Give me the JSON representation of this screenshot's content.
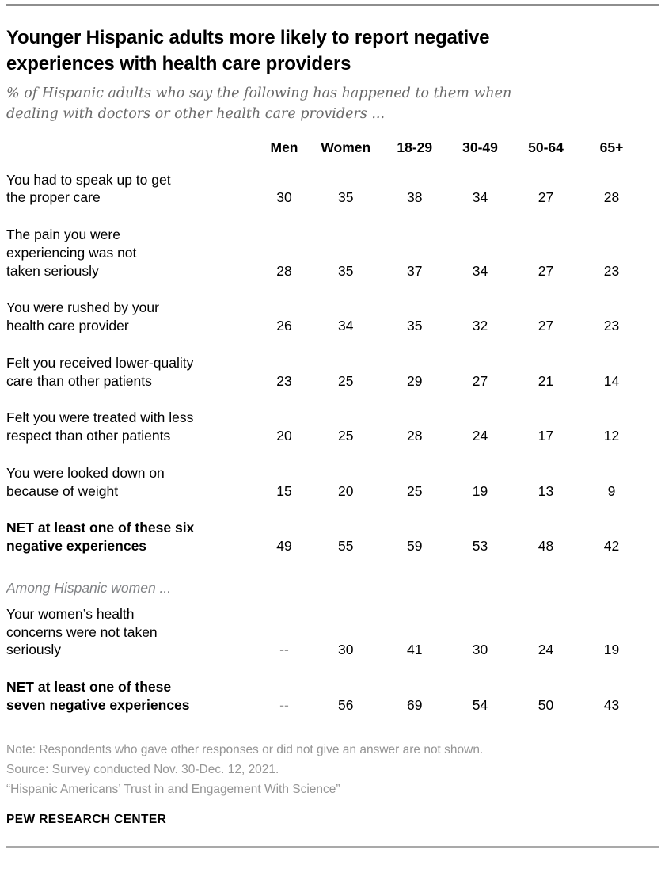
{
  "chart_data": {
    "type": "table",
    "title": "Younger Hispanic adults more likely to report negative\nexperiences with health care providers",
    "subtitle": "% of Hispanic adults who say the following has happened to them when\ndealing with doctors or other health care providers ...",
    "columns": [
      "Men",
      "Women",
      "18-29",
      "30-49",
      "50-64",
      "65+"
    ],
    "column_groups": [
      "gender",
      "gender",
      "age",
      "age",
      "age",
      "age"
    ],
    "rows": [
      {
        "label": "You had to speak up to get\nthe proper care",
        "bold": false,
        "values": [
          "30",
          "35",
          "38",
          "34",
          "27",
          "28"
        ]
      },
      {
        "label": "The pain you were\nexperiencing was not\ntaken seriously",
        "bold": false,
        "values": [
          "28",
          "35",
          "37",
          "34",
          "27",
          "23"
        ]
      },
      {
        "label": "You were rushed by your\nhealth care provider",
        "bold": false,
        "values": [
          "26",
          "34",
          "35",
          "32",
          "27",
          "23"
        ]
      },
      {
        "label": "Felt you received lower-quality\ncare than other patients",
        "bold": false,
        "values": [
          "23",
          "25",
          "29",
          "27",
          "21",
          "14"
        ]
      },
      {
        "label": "Felt you were treated with less\nrespect than other patients",
        "bold": false,
        "values": [
          "20",
          "25",
          "28",
          "24",
          "17",
          "12"
        ]
      },
      {
        "label": "You were looked down on\nbecause of weight",
        "bold": false,
        "values": [
          "15",
          "20",
          "25",
          "19",
          "13",
          "9"
        ]
      },
      {
        "label": "NET at least one of these six\nnegative experiences",
        "bold": true,
        "values": [
          "49",
          "55",
          "59",
          "53",
          "48",
          "42"
        ]
      },
      {
        "section": "Among Hispanic women ..."
      },
      {
        "label": "Your women’s health\nconcerns were not taken\nseriously",
        "bold": false,
        "values": [
          "--",
          "30",
          "41",
          "30",
          "24",
          "19"
        ]
      },
      {
        "label": "NET at least one of these\nseven negative experiences",
        "bold": true,
        "values": [
          "--",
          "56",
          "69",
          "54",
          "50",
          "43"
        ]
      }
    ],
    "missing_value_marker": "--",
    "layout": {
      "divider_after_column": "Women",
      "values_unit": "percent"
    }
  },
  "footer": {
    "note": "Note: Respondents who gave other responses or did not give an answer are not shown.",
    "source": "Source: Survey conducted Nov. 30-Dec. 12, 2021.",
    "citation": "“Hispanic Americans’ Trust in and Engagement With Science”",
    "brand": "PEW RESEARCH CENTER"
  },
  "colors": {
    "title_text": "#000000",
    "subtitle_gray": "#696969",
    "section_gray": "#808285",
    "note_gray": "#959595",
    "dash_gray": "#999999",
    "rule_top_gray": "#8e8e8e",
    "rule_bottom_gray": "#a9a9a9",
    "divider_black": "#1a1a1a"
  }
}
